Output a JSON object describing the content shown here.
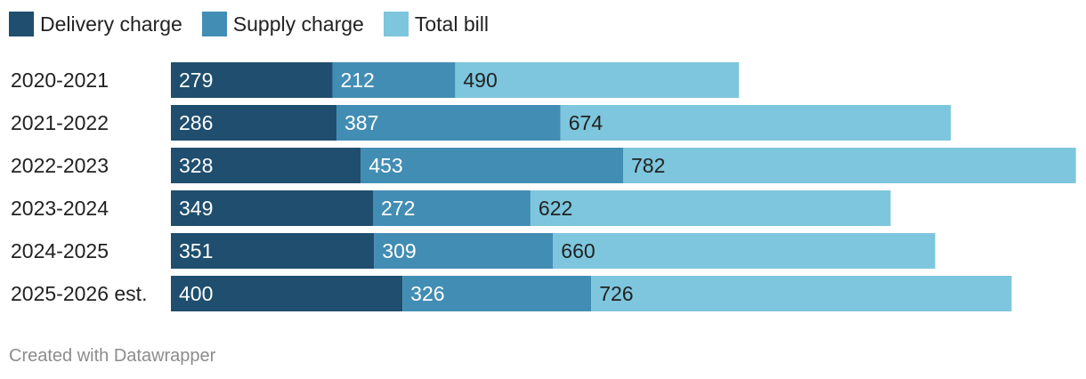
{
  "chart_data": {
    "type": "bar",
    "stacked": true,
    "orientation": "horizontal",
    "categories": [
      "2020-2021",
      "2021-2022",
      "2022-2023",
      "2023-2024",
      "2024-2025",
      "2025-2026 est."
    ],
    "series": [
      {
        "name": "Delivery charge",
        "color": "#1f4e6e",
        "label_color": "#ffffff",
        "values": [
          279,
          286,
          328,
          349,
          351,
          400
        ]
      },
      {
        "name": "Supply charge",
        "color": "#428db4",
        "label_color": "#ffffff",
        "values": [
          212,
          387,
          453,
          272,
          309,
          326
        ]
      },
      {
        "name": "Total bill",
        "color": "#7dc6dd",
        "label_color": "#222222",
        "values": [
          490,
          674,
          782,
          622,
          660,
          726
        ]
      }
    ],
    "xlim": [
      0,
      1562
    ],
    "legend_position": "top-left",
    "grid": false
  },
  "footer": {
    "credit": "Created with Datawrapper"
  }
}
